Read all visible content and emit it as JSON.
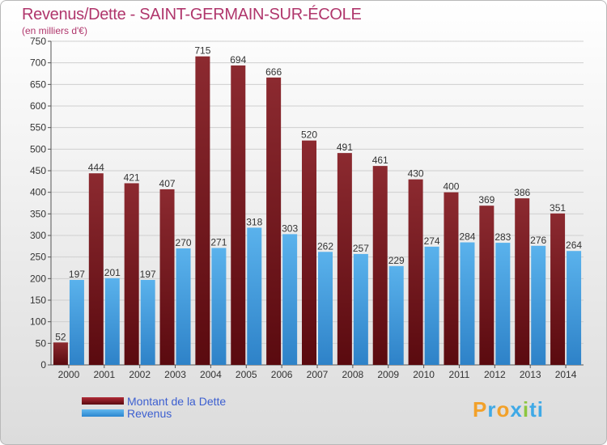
{
  "header": {
    "title": "Revenus/Dette - SAINT-GERMAIN-SUR-ÉCOLE",
    "subtitle": "(en milliers d'€)"
  },
  "legend": {
    "debt_label": "Montant de la Dette",
    "revenue_label": "Revenus"
  },
  "logo": {
    "text": "Proxiti"
  },
  "colors": {
    "debt": "#7a1a20",
    "revenue": "#4aa3e3",
    "title": "#b0366c",
    "legend_text": "#3c5fd0"
  },
  "chart_data": {
    "type": "bar",
    "title": "Revenus/Dette - SAINT-GERMAIN-SUR-ÉCOLE",
    "subtitle": "(en milliers d'€)",
    "categories": [
      "2000",
      "2001",
      "2002",
      "2003",
      "2004",
      "2005",
      "2006",
      "2007",
      "2008",
      "2009",
      "2010",
      "2011",
      "2012",
      "2013",
      "2014"
    ],
    "series": [
      {
        "name": "Montant de la Dette",
        "values": [
          52,
          444,
          421,
          407,
          715,
          694,
          666,
          520,
          491,
          461,
          430,
          400,
          369,
          386,
          351
        ]
      },
      {
        "name": "Revenus",
        "values": [
          197,
          201,
          197,
          270,
          271,
          318,
          303,
          262,
          257,
          229,
          274,
          284,
          283,
          276,
          264
        ]
      }
    ],
    "ylim": [
      0,
      750
    ],
    "yticks": [
      0,
      50,
      100,
      150,
      200,
      250,
      300,
      350,
      400,
      450,
      500,
      550,
      600,
      650,
      700,
      750
    ],
    "grid": true,
    "legend_position": "bottom-left"
  }
}
